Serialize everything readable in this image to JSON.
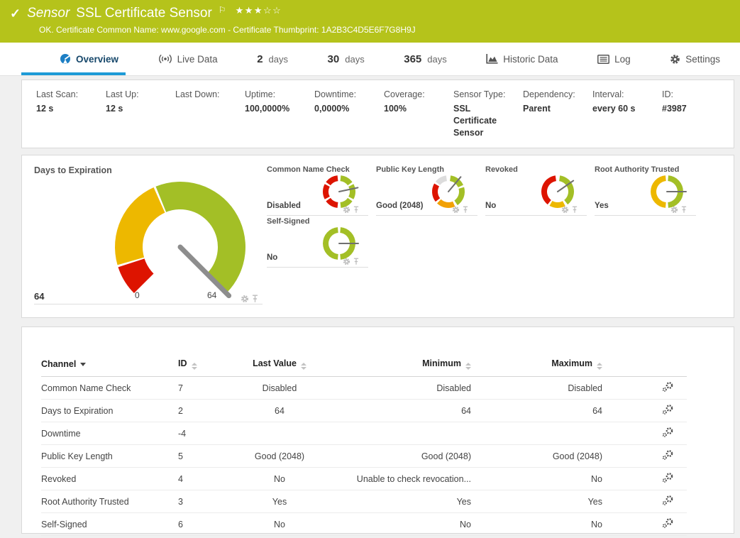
{
  "header": {
    "kind": "Sensor",
    "title": "SSL Certificate Sensor",
    "status_message": "OK. Certificate Common Name: www.google.com - Certificate Thumbprint: 1A2B3C4D5E6F7G8H9J",
    "stars_filled": 3,
    "stars_total": 5,
    "bg_color": "#b5c31b"
  },
  "tabs": [
    {
      "label": "Overview",
      "icon": "gauge-icon",
      "active": true
    },
    {
      "label": "Live Data",
      "icon": "live-data-icon",
      "active": false
    },
    {
      "num": "2",
      "label": "days",
      "active": false
    },
    {
      "num": "30",
      "label": "days",
      "active": false
    },
    {
      "num": "365",
      "label": "days",
      "active": false
    },
    {
      "label": "Historic Data",
      "icon": "area-chart-icon",
      "active": false
    },
    {
      "label": "Log",
      "icon": "log-icon",
      "active": false
    },
    {
      "label": "Settings",
      "icon": "gear-icon",
      "active": false
    }
  ],
  "info": [
    {
      "label": "Last Scan:",
      "value": "12 s"
    },
    {
      "label": "Last Up:",
      "value": "12 s"
    },
    {
      "label": "Last Down:",
      "value": ""
    },
    {
      "label": "Uptime:",
      "value": "100,0000%"
    },
    {
      "label": "Downtime:",
      "value": "0,0000%"
    },
    {
      "label": "Coverage:",
      "value": "100%"
    },
    {
      "label": "Sensor Type:",
      "value": "SSL Certificate Sensor"
    },
    {
      "label": "Dependency:",
      "value": "Parent"
    },
    {
      "label": "Interval:",
      "value": "every 60 s"
    },
    {
      "label": "ID:",
      "value": "#3987"
    }
  ],
  "main_gauge": {
    "title": "Days to Expiration",
    "value": "64",
    "scale_min": "0",
    "scale_max": "64",
    "needle_deg": 135,
    "needle_color": "#8d8d8d",
    "segments": [
      {
        "from": -135,
        "to": -108,
        "color": "#dd1400"
      },
      {
        "from": -106,
        "to": -24,
        "color": "#edb800"
      },
      {
        "from": -22,
        "to": 135,
        "color": "#a3bf26"
      }
    ]
  },
  "small_gauges": [
    {
      "title": "Common Name Check",
      "value": "Disabled",
      "needle_deg": 78,
      "segments": [
        {
          "from": 6,
          "to": 54,
          "color": "#a3bf26"
        },
        {
          "from": 62,
          "to": 118,
          "color": "#a3bf26"
        },
        {
          "from": 126,
          "to": 174,
          "color": "#a3bf26"
        },
        {
          "from": 186,
          "to": 234,
          "color": "#dd1400"
        },
        {
          "from": 242,
          "to": 298,
          "color": "#dd1400"
        },
        {
          "from": 306,
          "to": 354,
          "color": "#dd1400"
        }
      ]
    },
    {
      "title": "Public Key Length",
      "value": "Good (2048)",
      "needle_deg": 40,
      "segments": [
        {
          "from": 8,
          "to": 66,
          "color": "#a3bf26"
        },
        {
          "from": 74,
          "to": 146,
          "color": "#a3bf26"
        },
        {
          "from": 156,
          "to": 224,
          "color": "#f2a105"
        },
        {
          "from": 232,
          "to": 300,
          "color": "#dd1400"
        },
        {
          "from": 308,
          "to": 352,
          "color": "#dcdcdc"
        }
      ]
    },
    {
      "title": "Revoked",
      "value": "No",
      "needle_deg": 55,
      "segments": [
        {
          "from": 8,
          "to": 142,
          "color": "#a3bf26"
        },
        {
          "from": 152,
          "to": 210,
          "color": "#edb800"
        },
        {
          "from": 218,
          "to": 352,
          "color": "#dd1400"
        }
      ]
    },
    {
      "title": "Root Authority Trusted",
      "value": "Yes",
      "needle_deg": 90,
      "segments": [
        {
          "from": 5,
          "to": 175,
          "color": "#a3bf26"
        },
        {
          "from": 185,
          "to": 355,
          "color": "#edb800"
        }
      ]
    },
    {
      "title": "Self-Signed",
      "value": "No",
      "needle_deg": 90,
      "segments": [
        {
          "from": 5,
          "to": 175,
          "color": "#a3bf26"
        },
        {
          "from": 185,
          "to": 355,
          "color": "#a3bf26"
        }
      ]
    }
  ],
  "channel_table": {
    "columns": [
      "Channel",
      "ID",
      "Last Value",
      "Minimum",
      "Maximum"
    ],
    "rows": [
      {
        "channel": "Common Name Check",
        "id": "7",
        "last_value": "Disabled",
        "minimum": "Disabled",
        "maximum": "Disabled"
      },
      {
        "channel": "Days to Expiration",
        "id": "2",
        "last_value": "64",
        "minimum": "64",
        "maximum": "64"
      },
      {
        "channel": "Downtime",
        "id": "-4",
        "last_value": "",
        "minimum": "",
        "maximum": ""
      },
      {
        "channel": "Public Key Length",
        "id": "5",
        "last_value": "Good (2048)",
        "minimum": "Good (2048)",
        "maximum": "Good (2048)"
      },
      {
        "channel": "Revoked",
        "id": "4",
        "last_value": "No",
        "minimum": "Unable to check revocation...",
        "maximum": "No"
      },
      {
        "channel": "Root Authority Trusted",
        "id": "3",
        "last_value": "Yes",
        "minimum": "Yes",
        "maximum": "Yes"
      },
      {
        "channel": "Self-Signed",
        "id": "6",
        "last_value": "No",
        "minimum": "No",
        "maximum": "No"
      }
    ]
  },
  "colors": {
    "accent_green": "#b5c31b",
    "accent_blue": "#1e9bd7",
    "gauge_green": "#a3bf26",
    "gauge_yellow": "#edb800",
    "gauge_orange": "#f2a105",
    "gauge_red": "#dd1400",
    "gauge_gray": "#dcdcdc"
  }
}
